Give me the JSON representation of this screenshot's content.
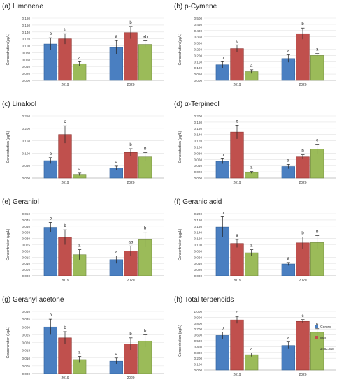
{
  "legend": [
    {
      "name": "Control",
      "color": "#4a7fc1"
    },
    {
      "name": "Mei",
      "color": "#c0504d"
    },
    {
      "name": "ADP-Mei",
      "color": "#9bbb59"
    }
  ],
  "ylabel": "Concentration (μg/L)",
  "chart_data": [
    {
      "type": "bar",
      "title": "(a) Limonene",
      "categories": [
        "2019",
        "2020"
      ],
      "ylabel": "Concentration (μg/L)",
      "ymax": 0.18,
      "yticks": [
        "0,000",
        "0,020",
        "0,040",
        "0,060",
        "0,080",
        "0,100",
        "0,120",
        "0,140",
        "0,160",
        "0,180"
      ],
      "series": [
        {
          "name": "Control",
          "values": [
            0.105,
            0.095
          ],
          "errors": [
            0.018,
            0.02
          ],
          "labels": [
            "b",
            "a"
          ]
        },
        {
          "name": "Mei",
          "values": [
            0.12,
            0.138
          ],
          "errors": [
            0.015,
            0.018
          ],
          "labels": [
            "b",
            "b"
          ]
        },
        {
          "name": "ADP-Mei",
          "values": [
            0.048,
            0.104
          ],
          "errors": [
            0.006,
            0.01
          ],
          "labels": [
            "a",
            "ab"
          ]
        }
      ]
    },
    {
      "type": "bar",
      "title": "(b) p-Cymene",
      "categories": [
        "2019",
        "2020"
      ],
      "ylabel": "Concentration (μg/L)",
      "ymax": 0.5,
      "yticks": [
        "0,000",
        "0,050",
        "0,100",
        "0,150",
        "0,200",
        "0,250",
        "0,300",
        "0,350",
        "0,400",
        "0,450",
        "0,500"
      ],
      "series": [
        {
          "name": "Control",
          "values": [
            0.125,
            0.175
          ],
          "errors": [
            0.025,
            0.03
          ],
          "labels": [
            "b",
            "a"
          ]
        },
        {
          "name": "Mei",
          "values": [
            0.255,
            0.375
          ],
          "errors": [
            0.03,
            0.045
          ],
          "labels": [
            "c",
            "b"
          ]
        },
        {
          "name": "ADP-Mei",
          "values": [
            0.07,
            0.2
          ],
          "errors": [
            0.015,
            0.015
          ],
          "labels": [
            "a",
            "a"
          ]
        }
      ]
    },
    {
      "type": "bar",
      "title": "(c) Linalool",
      "categories": [
        "2019",
        "2020"
      ],
      "ylabel": "Concentration (μg/L)",
      "ymax": 0.25,
      "yticks": [
        "0,000",
        "0,050",
        "0,100",
        "0,150",
        "0,200",
        "0,250"
      ],
      "series": [
        {
          "name": "Control",
          "values": [
            0.07,
            0.04
          ],
          "errors": [
            0.012,
            0.008
          ],
          "labels": [
            "b",
            "a"
          ]
        },
        {
          "name": "Mei",
          "values": [
            0.175,
            0.103
          ],
          "errors": [
            0.035,
            0.015
          ],
          "labels": [
            "c",
            "b"
          ]
        },
        {
          "name": "ADP-Mei",
          "values": [
            0.015,
            0.085
          ],
          "errors": [
            0.005,
            0.018
          ],
          "labels": [
            "a",
            "b"
          ]
        }
      ]
    },
    {
      "type": "bar",
      "title": "(d) α-Terpineol",
      "categories": [
        "2019",
        "2020"
      ],
      "ylabel": "Concentration (μg/L)",
      "ymax": 0.2,
      "yticks": [
        "0,000",
        "0,020",
        "0,040",
        "0,060",
        "0,080",
        "0,100",
        "0,120",
        "0,140",
        "0,160",
        "0,180",
        "0,200"
      ],
      "series": [
        {
          "name": "Control",
          "values": [
            0.054,
            0.037
          ],
          "errors": [
            0.008,
            0.007
          ],
          "labels": [
            "b",
            "a"
          ]
        },
        {
          "name": "Mei",
          "values": [
            0.148,
            0.068
          ],
          "errors": [
            0.022,
            0.007
          ],
          "labels": [
            "c",
            "b"
          ]
        },
        {
          "name": "ADP-Mei",
          "values": [
            0.018,
            0.093
          ],
          "errors": [
            0.003,
            0.016
          ],
          "labels": [
            "a",
            "c"
          ]
        }
      ]
    },
    {
      "type": "bar",
      "title": "(e) Geraniol",
      "categories": [
        "2019",
        "2020"
      ],
      "ylabel": "Concentration (μg/L)",
      "ymax": 0.05,
      "yticks": [
        "0,000",
        "0,005",
        "0,010",
        "0,015",
        "0,020",
        "0,025",
        "0,030",
        "0,035",
        "0,040",
        "0,045",
        "0,050"
      ],
      "series": [
        {
          "name": "Control",
          "values": [
            0.039,
            0.013
          ],
          "errors": [
            0.004,
            0.003
          ],
          "labels": [
            "b",
            "a"
          ]
        },
        {
          "name": "Mei",
          "values": [
            0.031,
            0.02
          ],
          "errors": [
            0.006,
            0.004
          ],
          "labels": [
            "b",
            "ab"
          ]
        },
        {
          "name": "ADP-Mei",
          "values": [
            0.017,
            0.029
          ],
          "errors": [
            0.004,
            0.006
          ],
          "labels": [
            "a",
            "b"
          ]
        }
      ]
    },
    {
      "type": "bar",
      "title": "(f) Geranic acid",
      "categories": [
        "2019",
        "2020"
      ],
      "ylabel": "Concentration (μg/L)",
      "ymax": 0.2,
      "yticks": [
        "0,000",
        "0,020",
        "0,040",
        "0,060",
        "0,080",
        "0,100",
        "0,120",
        "0,140",
        "0,160",
        "0,180",
        "0,200"
      ],
      "series": [
        {
          "name": "Control",
          "values": [
            0.157,
            0.038
          ],
          "errors": [
            0.033,
            0.005
          ],
          "labels": [
            "b",
            "a"
          ]
        },
        {
          "name": "Mei",
          "values": [
            0.104,
            0.106
          ],
          "errors": [
            0.013,
            0.019
          ],
          "labels": [
            "a",
            "b"
          ]
        },
        {
          "name": "ADP-Mei",
          "values": [
            0.074,
            0.107
          ],
          "errors": [
            0.01,
            0.022
          ],
          "labels": [
            "a",
            "b"
          ]
        }
      ]
    },
    {
      "type": "bar",
      "title": "(g) Geranyl acetone",
      "categories": [
        "2019",
        "2020"
      ],
      "ylabel": "Concentration (μg/L)",
      "ymax": 0.04,
      "yticks": [
        "0,000",
        "0,005",
        "0,010",
        "0,015",
        "0,020",
        "0,025",
        "0,030",
        "0,035",
        "0,040"
      ],
      "series": [
        {
          "name": "Control",
          "values": [
            0.03,
            0.008
          ],
          "errors": [
            0.005,
            0.002
          ],
          "labels": [
            "b",
            "a"
          ]
        },
        {
          "name": "Mei",
          "values": [
            0.023,
            0.019
          ],
          "errors": [
            0.004,
            0.004
          ],
          "labels": [
            "b",
            "b"
          ]
        },
        {
          "name": "ADP-Mei",
          "values": [
            0.009,
            0.021
          ],
          "errors": [
            0.002,
            0.004
          ],
          "labels": [
            "a",
            "b"
          ]
        }
      ]
    },
    {
      "type": "bar",
      "title": "(h) Total terpenoids",
      "categories": [
        "2019",
        "2020"
      ],
      "ylabel": "Concentration (μg/L)",
      "ymax": 1.0,
      "yticks": [
        "0,000",
        "0,100",
        "0,200",
        "0,300",
        "0,400",
        "0,500",
        "0,600",
        "0,700",
        "0,800",
        "0,900",
        "1,000"
      ],
      "series": [
        {
          "name": "Control",
          "values": [
            0.59,
            0.42
          ],
          "errors": [
            0.06,
            0.06
          ],
          "labels": [
            "b",
            "a"
          ]
        },
        {
          "name": "Mei",
          "values": [
            0.855,
            0.83
          ],
          "errors": [
            0.06,
            0.03
          ],
          "labels": [
            "c",
            "c"
          ]
        },
        {
          "name": "ADP-Mei",
          "values": [
            0.26,
            0.645
          ],
          "errors": [
            0.03,
            0.06
          ],
          "labels": [
            "a",
            "b"
          ]
        }
      ]
    }
  ]
}
